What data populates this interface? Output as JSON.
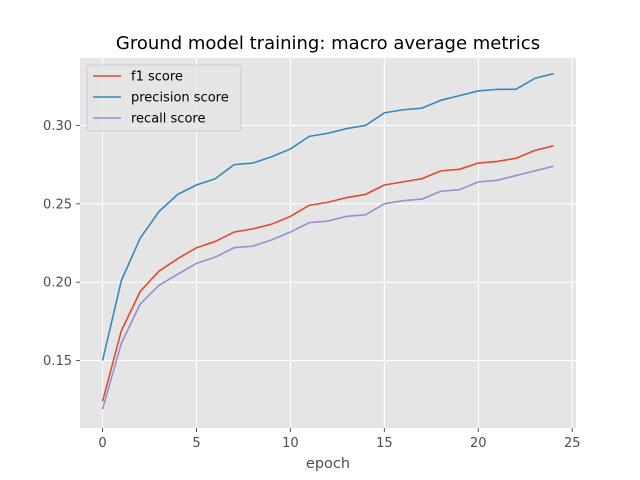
{
  "chart_data": {
    "type": "line",
    "title": "Ground model training: macro average metrics",
    "xlabel": "epoch",
    "ylabel": "",
    "xlim": [
      -1.2,
      25.2
    ],
    "ylim": [
      0.107,
      0.343
    ],
    "xticks": [
      0,
      5,
      10,
      15,
      20,
      25
    ],
    "yticks": [
      0.15,
      0.2,
      0.25,
      0.3
    ],
    "ytick_labels": [
      "0.15",
      "0.20",
      "0.25",
      "0.30"
    ],
    "grid": true,
    "legend_position": "top-left",
    "background": "#e5e5e5",
    "x": [
      0,
      1,
      2,
      3,
      4,
      5,
      6,
      7,
      8,
      9,
      10,
      11,
      12,
      13,
      14,
      15,
      16,
      17,
      18,
      19,
      20,
      21,
      22,
      23,
      24
    ],
    "series": [
      {
        "name": "f1 score",
        "color": "#e24a33",
        "values": [
          0.124,
          0.169,
          0.194,
          0.207,
          0.215,
          0.222,
          0.226,
          0.232,
          0.234,
          0.237,
          0.242,
          0.249,
          0.251,
          0.254,
          0.256,
          0.262,
          0.264,
          0.266,
          0.271,
          0.272,
          0.276,
          0.277,
          0.279,
          0.284,
          0.287
        ]
      },
      {
        "name": "precision score",
        "color": "#348abd",
        "values": [
          0.15,
          0.201,
          0.228,
          0.245,
          0.256,
          0.262,
          0.266,
          0.275,
          0.276,
          0.28,
          0.285,
          0.293,
          0.295,
          0.298,
          0.3,
          0.308,
          0.31,
          0.311,
          0.316,
          0.319,
          0.322,
          0.323,
          0.323,
          0.33,
          0.333
        ]
      },
      {
        "name": "recall score",
        "color": "#988ed5",
        "values": [
          0.119,
          0.161,
          0.186,
          0.198,
          0.205,
          0.212,
          0.216,
          0.222,
          0.223,
          0.227,
          0.232,
          0.238,
          0.239,
          0.242,
          0.243,
          0.25,
          0.252,
          0.253,
          0.258,
          0.259,
          0.264,
          0.265,
          0.268,
          0.271,
          0.274
        ]
      }
    ]
  }
}
